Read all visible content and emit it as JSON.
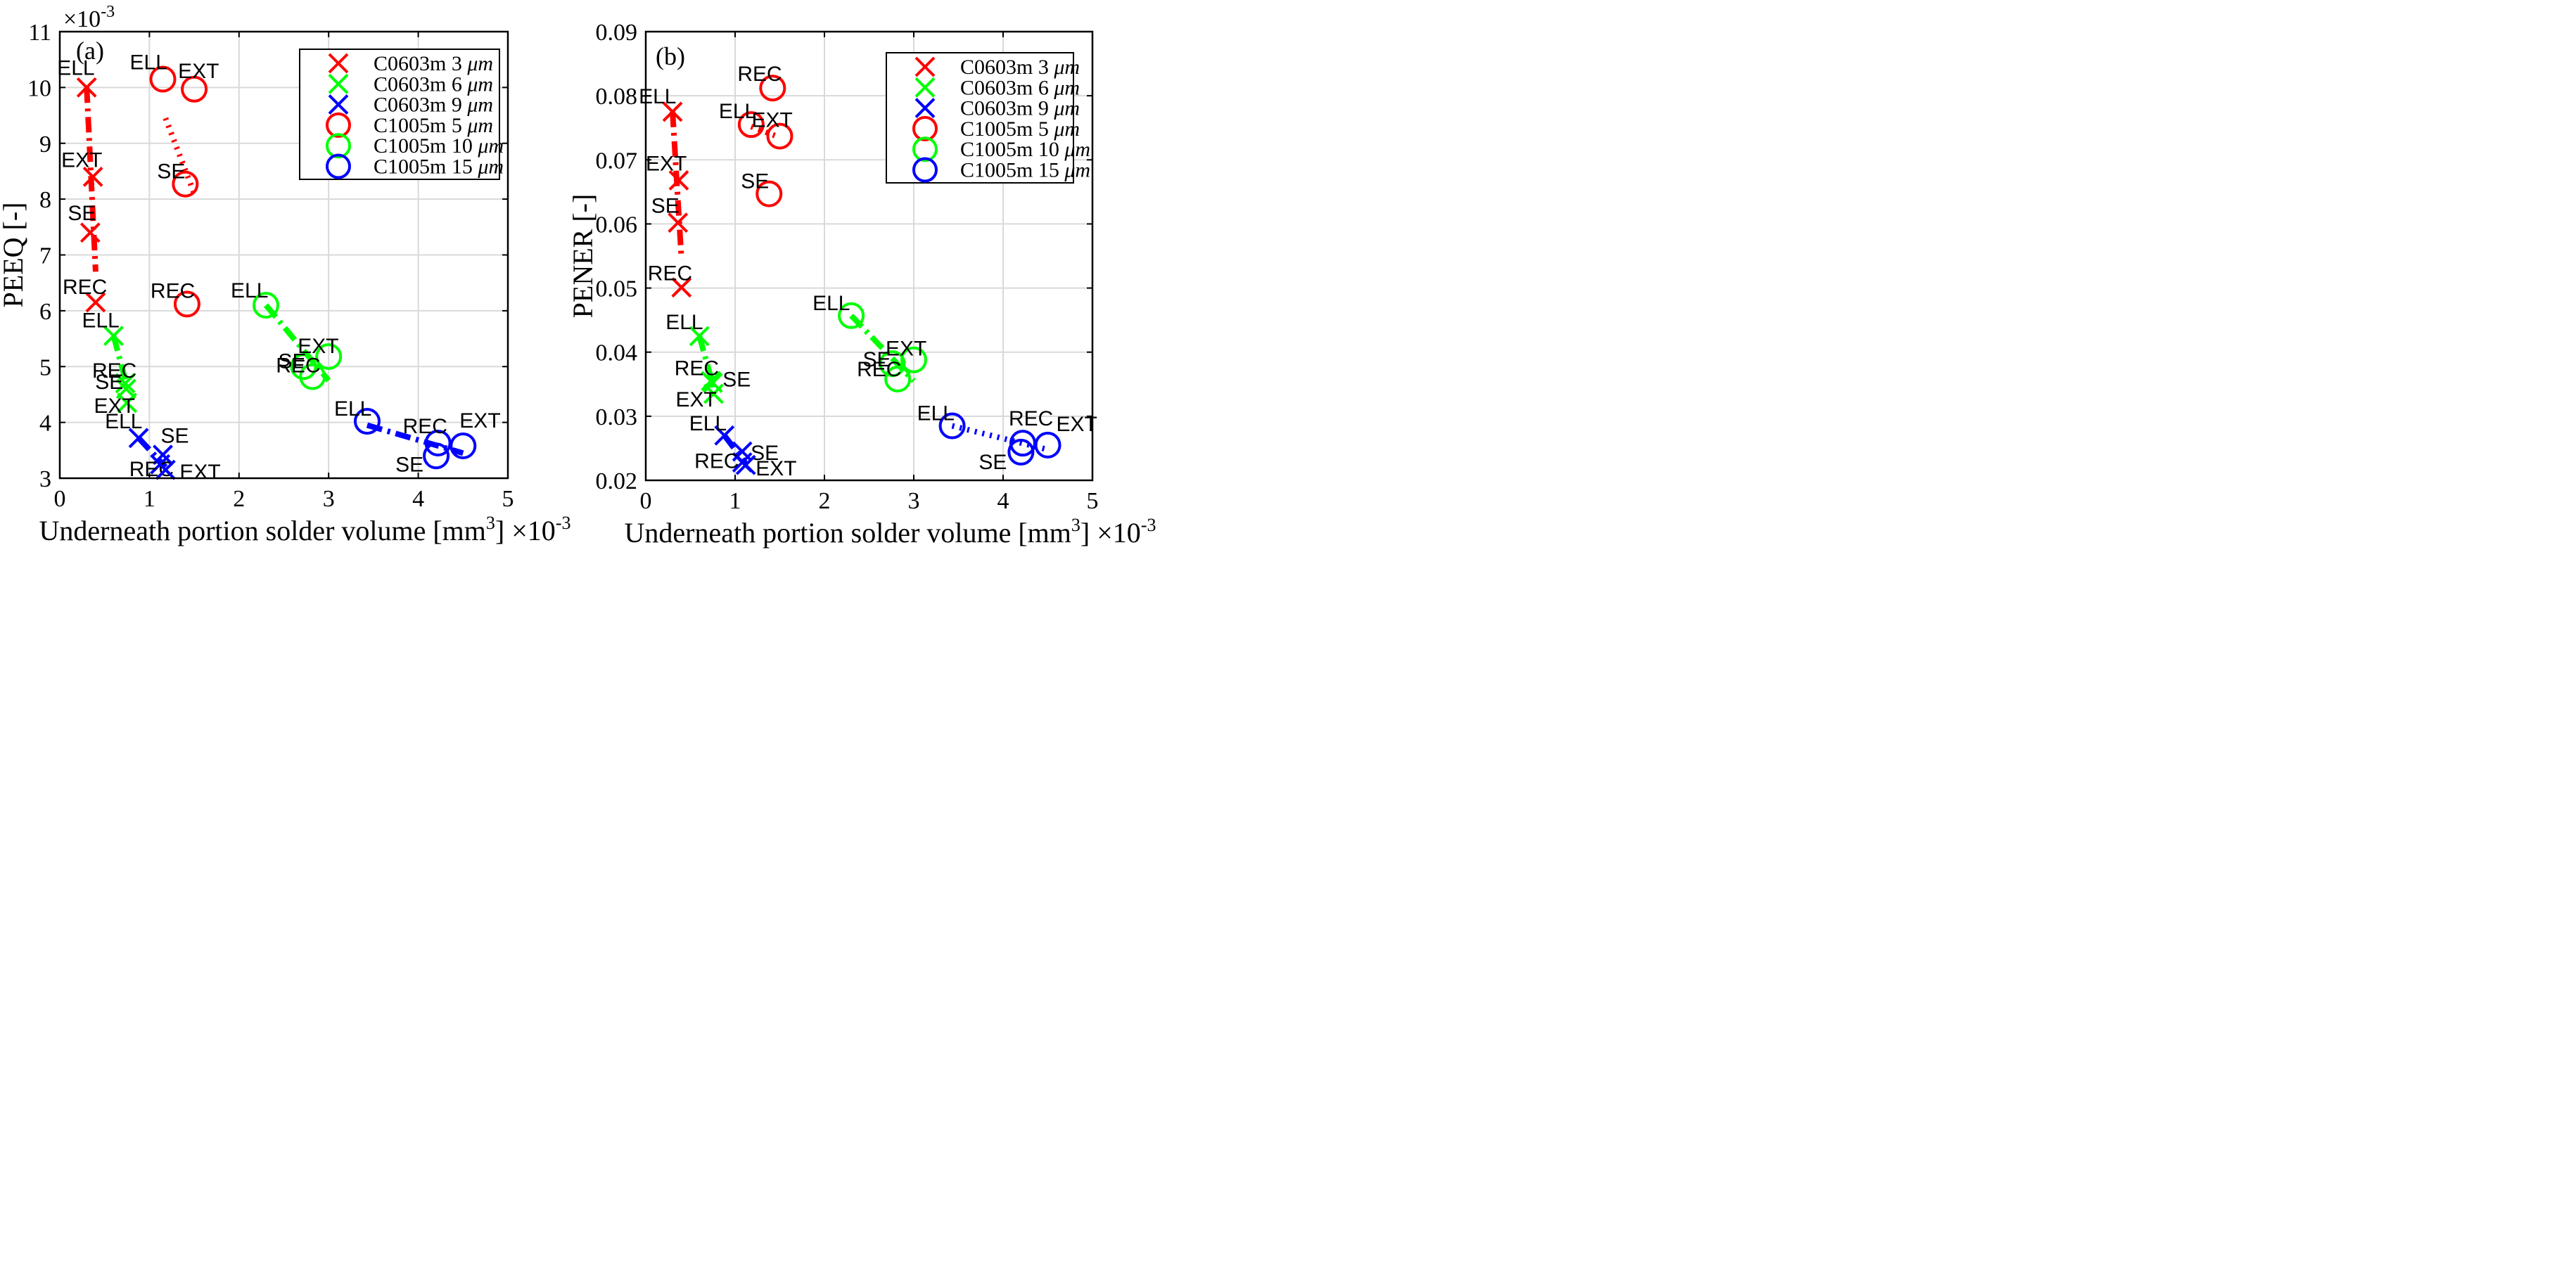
{
  "chart_data": [
    {
      "type": "scatter",
      "panel_label": "(a)",
      "title": "",
      "xlabel": "Underneath portion solder volume [mm",
      "xlabel_sup": "3",
      "xlabel_tail": "]",
      "x_multiplier": "×10",
      "x_multiplier_exp": "-3",
      "ylabel": "PEEQ [-]",
      "y_multiplier": "×10",
      "y_multiplier_exp": "-3",
      "xlim": [
        0,
        5
      ],
      "ylim": [
        3,
        11
      ],
      "xticks": [
        0,
        1,
        2,
        3,
        4,
        5
      ],
      "yticks": [
        3,
        4,
        5,
        6,
        7,
        8,
        9,
        10,
        11
      ],
      "xtick_labels": [
        "0",
        "1",
        "2",
        "3",
        "4",
        "5"
      ],
      "ytick_labels": [
        "3",
        "4",
        "5",
        "6",
        "7",
        "8",
        "9",
        "10",
        "11"
      ],
      "grid": true,
      "legend_position": "top-right",
      "series": [
        {
          "name": "C0603m 3 μm",
          "legend_pre": "C0603m 3 ",
          "legend_unit": "μm",
          "color": "#ff0000",
          "marker": "x",
          "points": [
            {
              "label": "ELL",
              "x": 0.3,
              "y": 10.0
            },
            {
              "label": "EXT",
              "x": 0.37,
              "y": 8.4
            },
            {
              "label": "SE",
              "x": 0.34,
              "y": 7.4
            },
            {
              "label": "REC",
              "x": 0.4,
              "y": 6.15
            }
          ],
          "trend": [
            [
              0.3,
              10.0
            ],
            [
              0.4,
              6.7
            ]
          ],
          "trend_dash": "dashdot"
        },
        {
          "name": "C0603m 6 μm",
          "legend_pre": "C0603m 6 ",
          "legend_unit": "μm",
          "color": "#00ff00",
          "marker": "x",
          "points": [
            {
              "label": "ELL",
              "x": 0.6,
              "y": 5.55
            },
            {
              "label": "REC",
              "x": 0.73,
              "y": 4.7
            },
            {
              "label": "SE",
              "x": 0.74,
              "y": 4.6
            },
            {
              "label": "EXT",
              "x": 0.75,
              "y": 4.35
            }
          ],
          "trend": [
            [
              0.6,
              5.55
            ],
            [
              0.75,
              4.65
            ]
          ],
          "trend_dash": "dashdot"
        },
        {
          "name": "C0603m 9 μm",
          "legend_pre": "C0603m 9 ",
          "legend_unit": "μm",
          "color": "#0000ff",
          "marker": "x",
          "points": [
            {
              "label": "ELL",
              "x": 0.88,
              "y": 3.72
            },
            {
              "label": "SE",
              "x": 1.15,
              "y": 3.42
            },
            {
              "label": "REC",
              "x": 1.12,
              "y": 3.25
            },
            {
              "label": "EXT",
              "x": 1.18,
              "y": 3.15
            }
          ],
          "trend": [
            [
              0.88,
              3.72
            ],
            [
              1.18,
              3.2
            ]
          ],
          "trend_dash": "dashdot"
        },
        {
          "name": "C1005m 5 μm",
          "legend_pre": "C1005m 5 ",
          "legend_unit": "μm",
          "color": "#ff0000",
          "marker": "o",
          "points": [
            {
              "label": "ELL",
              "x": 1.15,
              "y": 10.15
            },
            {
              "label": "EXT",
              "x": 1.5,
              "y": 9.97
            },
            {
              "label": "SE",
              "x": 1.4,
              "y": 8.27
            },
            {
              "label": "REC",
              "x": 1.42,
              "y": 6.12
            }
          ],
          "trend": [
            [
              1.18,
              9.45
            ],
            [
              1.5,
              8.1
            ]
          ],
          "trend_dash": "dot"
        },
        {
          "name": "C1005m 10 μm",
          "legend_pre": "C1005m 10 ",
          "legend_unit": "μm",
          "color": "#00ff00",
          "marker": "o",
          "points": [
            {
              "label": "ELL",
              "x": 2.3,
              "y": 6.1
            },
            {
              "label": "SE",
              "x": 2.72,
              "y": 5.0
            },
            {
              "label": "EXT",
              "x": 3.0,
              "y": 5.18
            },
            {
              "label": "REC",
              "x": 2.82,
              "y": 4.82
            }
          ],
          "trend": [
            [
              2.3,
              6.1
            ],
            [
              3.0,
              4.75
            ]
          ],
          "trend_dash": "dashdot"
        },
        {
          "name": "C1005m 15 μm",
          "legend_pre": "C1005m 15 ",
          "legend_unit": "μm",
          "color": "#0000ff",
          "marker": "o",
          "points": [
            {
              "label": "ELL",
              "x": 3.43,
              "y": 4.02
            },
            {
              "label": "REC",
              "x": 4.22,
              "y": 3.63
            },
            {
              "label": "EXT",
              "x": 4.5,
              "y": 3.58
            },
            {
              "label": "SE",
              "x": 4.2,
              "y": 3.4
            }
          ],
          "trend": [
            [
              3.43,
              3.95
            ],
            [
              4.5,
              3.45
            ]
          ],
          "trend_dash": "dashdot"
        }
      ]
    },
    {
      "type": "scatter",
      "panel_label": "(b)",
      "title": "",
      "xlabel": "Underneath portion solder volume [mm",
      "xlabel_sup": "3",
      "xlabel_tail": "]",
      "x_multiplier": "×10",
      "x_multiplier_exp": "-3",
      "ylabel": "PENER [-]",
      "xlim": [
        0,
        5
      ],
      "ylim": [
        0.02,
        0.09
      ],
      "xticks": [
        0,
        1,
        2,
        3,
        4,
        5
      ],
      "yticks": [
        0.02,
        0.03,
        0.04,
        0.05,
        0.06,
        0.07,
        0.08,
        0.09
      ],
      "xtick_labels": [
        "0",
        "1",
        "2",
        "3",
        "4",
        "5"
      ],
      "ytick_labels": [
        "0.02",
        "0.03",
        "0.04",
        "0.05",
        "0.06",
        "0.07",
        "0.08",
        "0.09"
      ],
      "grid": true,
      "legend_position": "top-right",
      "series": [
        {
          "name": "C0603m 3 μm",
          "legend_pre": "C0603m 3 ",
          "legend_unit": "μm",
          "color": "#ff0000",
          "marker": "x",
          "points": [
            {
              "label": "ELL",
              "x": 0.3,
              "y": 0.0775
            },
            {
              "label": "EXT",
              "x": 0.37,
              "y": 0.0668
            },
            {
              "label": "SE",
              "x": 0.36,
              "y": 0.0602
            },
            {
              "label": "REC",
              "x": 0.4,
              "y": 0.0501
            }
          ],
          "trend": [
            [
              0.3,
              0.0775
            ],
            [
              0.4,
              0.0545
            ]
          ],
          "trend_dash": "dashdot"
        },
        {
          "name": "C0603m 6 μm",
          "legend_pre": "C0603m 6 ",
          "legend_unit": "μm",
          "color": "#00ff00",
          "marker": "x",
          "points": [
            {
              "label": "ELL",
              "x": 0.6,
              "y": 0.0425
            },
            {
              "label": "REC",
              "x": 0.73,
              "y": 0.0355
            },
            {
              "label": "SE",
              "x": 0.75,
              "y": 0.0352
            },
            {
              "label": "EXT",
              "x": 0.76,
              "y": 0.0335
            }
          ],
          "trend": [
            [
              0.6,
              0.0425
            ],
            [
              0.76,
              0.0345
            ]
          ],
          "trend_dash": "dashdot"
        },
        {
          "name": "C0603m 9 μm",
          "legend_pre": "C0603m 9 ",
          "legend_unit": "μm",
          "color": "#0000ff",
          "marker": "x",
          "points": [
            {
              "label": "ELL",
              "x": 0.88,
              "y": 0.027
            },
            {
              "label": "SE",
              "x": 1.08,
              "y": 0.0245
            },
            {
              "label": "REC",
              "x": 1.08,
              "y": 0.0228
            },
            {
              "label": "EXT",
              "x": 1.12,
              "y": 0.0224
            }
          ],
          "trend": [
            [
              0.88,
              0.027
            ],
            [
              1.12,
              0.0226
            ]
          ],
          "trend_dash": "dashdot"
        },
        {
          "name": "C1005m 5 μm",
          "legend_pre": "C1005m 5 ",
          "legend_unit": "μm",
          "color": "#ff0000",
          "marker": "o",
          "points": [
            {
              "label": "REC",
              "x": 1.42,
              "y": 0.0812
            },
            {
              "label": "ELL",
              "x": 1.18,
              "y": 0.0755
            },
            {
              "label": "EXT",
              "x": 1.5,
              "y": 0.0737
            },
            {
              "label": "SE",
              "x": 1.38,
              "y": 0.0647
            }
          ],
          "trend": [
            [
              1.18,
              0.0752
            ],
            [
              1.5,
              0.0735
            ]
          ],
          "trend_dash": "dot"
        },
        {
          "name": "C1005m 10 μm",
          "legend_pre": "C1005m 10 ",
          "legend_unit": "μm",
          "color": "#00ff00",
          "marker": "o",
          "points": [
            {
              "label": "ELL",
              "x": 2.3,
              "y": 0.0457
            },
            {
              "label": "SE",
              "x": 2.76,
              "y": 0.0382
            },
            {
              "label": "EXT",
              "x": 3.0,
              "y": 0.0388
            },
            {
              "label": "REC",
              "x": 2.82,
              "y": 0.0358
            }
          ],
          "trend": [
            [
              2.3,
              0.0457
            ],
            [
              3.0,
              0.0355
            ]
          ],
          "trend_dash": "dashdot"
        },
        {
          "name": "C1005m 15 μm",
          "legend_pre": "C1005m 15 ",
          "legend_unit": "μm",
          "color": "#0000ff",
          "marker": "o",
          "points": [
            {
              "label": "ELL",
              "x": 3.43,
              "y": 0.0285
            },
            {
              "label": "REC",
              "x": 4.22,
              "y": 0.0258
            },
            {
              "label": "EXT",
              "x": 4.5,
              "y": 0.0255
            },
            {
              "label": "SE",
              "x": 4.2,
              "y": 0.0244
            }
          ],
          "trend": [
            [
              3.43,
              0.0285
            ],
            [
              4.5,
              0.0248
            ]
          ],
          "trend_dash": "dot"
        }
      ]
    }
  ]
}
